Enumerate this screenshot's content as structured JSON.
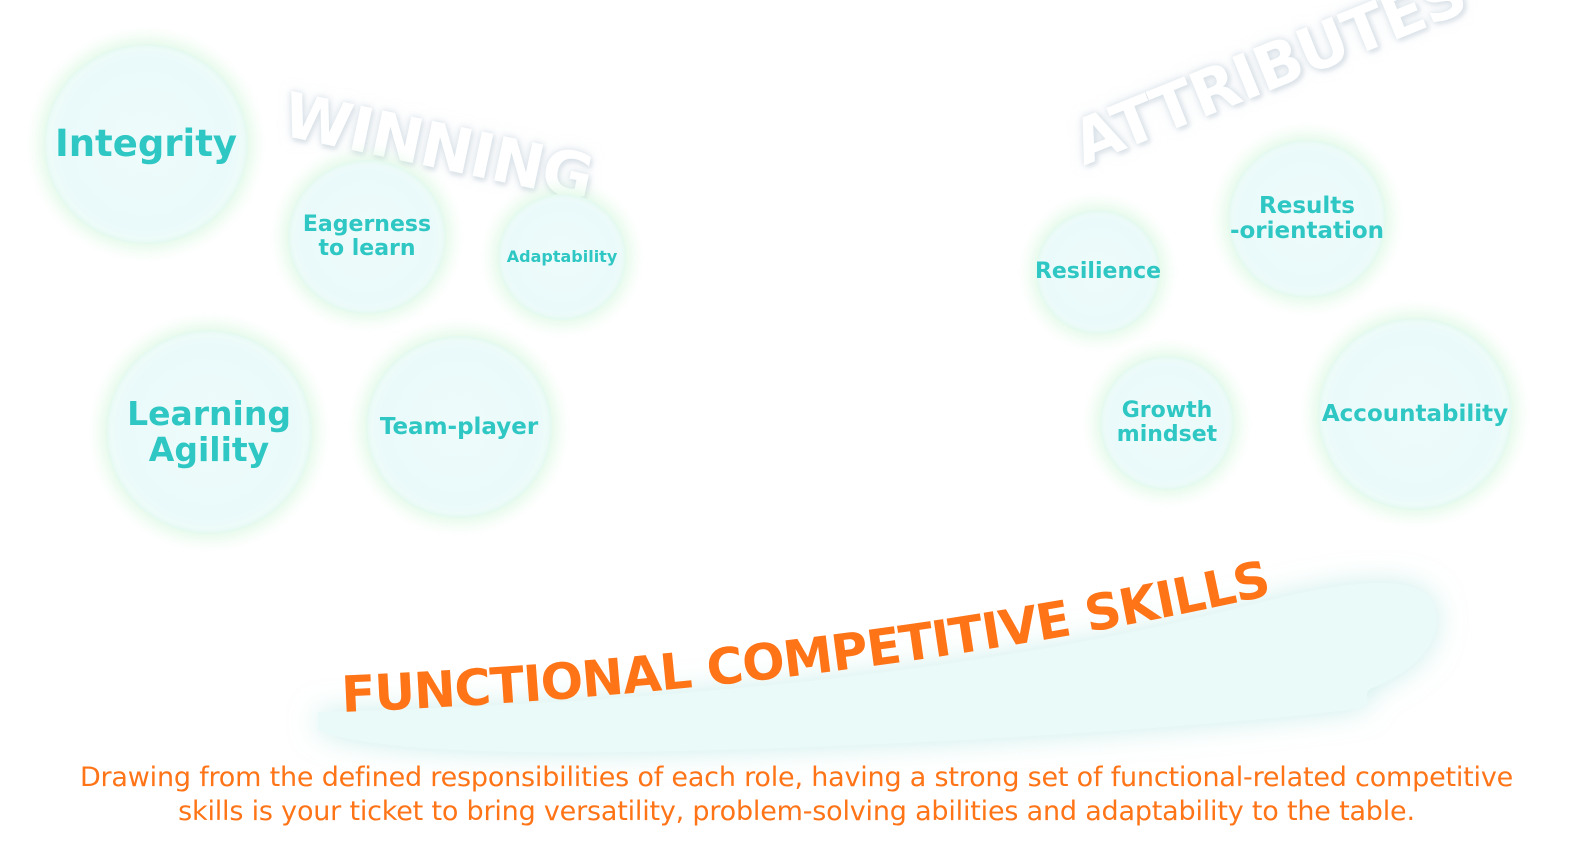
{
  "background_words": {
    "left": "WINNING",
    "right": "ATTRIBUTES"
  },
  "bubbles": {
    "integrity": "Integrity",
    "eagerness_line1": "Eagerness",
    "eagerness_line2": "to learn",
    "adaptability": "Adaptability",
    "learning_line1": "Learning",
    "learning_line2": "Agility",
    "team_player": "Team-player",
    "resilience": "Resilience",
    "results_line1": "Results",
    "results_line2": "-orientation",
    "growth_line1": "Growth",
    "growth_line2": "mindset",
    "accountability": "Accountability"
  },
  "banner": {
    "title": "FUNCTIONAL COMPETITIVE SKILLS"
  },
  "description": {
    "line1": "Drawing from the defined responsibilities of each role, having a strong set of functional-related competitive",
    "line2": "skills is your ticket to bring versatility, problem-solving abilities and adaptability to the table."
  },
  "colors": {
    "accent_teal": "#2ec7c3",
    "accent_orange": "#ff7417",
    "bubble_fill": "#eafafa"
  }
}
